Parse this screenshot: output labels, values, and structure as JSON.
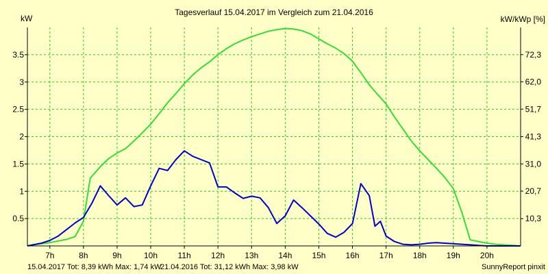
{
  "chart_data": {
    "type": "line",
    "title": "Tagesverlauf 15.04.2017 im Vergleich zum 21.04.2016",
    "ylabel": "kW",
    "y2label": "kW/kWp [%]",
    "footer_right": "SunnyReport pinxit",
    "grid": true,
    "ylim": [
      0,
      4.0
    ],
    "y2lim": [
      0,
      82.6
    ],
    "xlim": [
      6.333,
      21.0
    ],
    "x_ticks": [
      "7h",
      "8h",
      "9h",
      "10h",
      "11h",
      "12h",
      "13h",
      "14h",
      "15h",
      "16h",
      "17h",
      "18h",
      "19h",
      "20h"
    ],
    "y_ticks": [
      "0.5",
      "1",
      "1.5",
      "2",
      "2.5",
      "3",
      "3.5"
    ],
    "y2_ticks": [
      "10,3",
      "20,7",
      "31,0",
      "41,3",
      "51,7",
      "62,0",
      "72,3"
    ],
    "series": [
      {
        "name": "15.04.2017",
        "legend": "15.04.2017 Tot: 8,39 kWh Max: 1,74 kW",
        "color": "#0000cc",
        "x": [
          6.333,
          6.5,
          6.75,
          7.0,
          7.25,
          7.5,
          7.75,
          8.0,
          8.25,
          8.5,
          8.75,
          9.0,
          9.25,
          9.5,
          9.75,
          10.0,
          10.25,
          10.5,
          10.75,
          11.0,
          11.25,
          11.42,
          11.5,
          11.75,
          12.0,
          12.25,
          12.5,
          12.75,
          13.0,
          13.25,
          13.5,
          13.75,
          14.0,
          14.25,
          14.5,
          14.75,
          15.0,
          15.25,
          15.5,
          15.75,
          16.0,
          16.25,
          16.5,
          16.67,
          16.83,
          17.0,
          17.25,
          17.5,
          17.75,
          18.0,
          18.25,
          18.5,
          18.75,
          19.0,
          19.25,
          19.5,
          19.75,
          20.0,
          20.25,
          20.5,
          20.75,
          21.0
        ],
        "values": [
          0,
          0.02,
          0.05,
          0.1,
          0.18,
          0.3,
          0.42,
          0.52,
          0.78,
          1.1,
          0.92,
          0.75,
          0.88,
          0.72,
          0.75,
          1.1,
          1.42,
          1.38,
          1.58,
          1.74,
          1.64,
          1.6,
          1.58,
          1.52,
          1.08,
          1.08,
          0.97,
          0.87,
          0.91,
          0.88,
          0.7,
          0.41,
          0.55,
          0.84,
          0.7,
          0.55,
          0.4,
          0.23,
          0.16,
          0.25,
          0.41,
          1.14,
          0.92,
          0.36,
          0.45,
          0.18,
          0.08,
          0.03,
          0.02,
          0.03,
          0.05,
          0.06,
          0.05,
          0.04,
          0.03,
          0.02,
          0.01,
          0,
          0,
          0,
          0,
          0
        ]
      },
      {
        "name": "21.04.2016",
        "legend": "21.04.2016 Tot: 31,12 kWh Max: 3,98 kW",
        "color": "#33dd33",
        "x": [
          6.333,
          6.5,
          6.75,
          7.0,
          7.25,
          7.5,
          7.75,
          8.0,
          8.2,
          8.5,
          8.75,
          9.0,
          9.25,
          9.5,
          9.75,
          10.0,
          10.25,
          10.5,
          10.75,
          11.0,
          11.25,
          11.5,
          11.75,
          12.0,
          12.25,
          12.5,
          12.75,
          13.0,
          13.25,
          13.5,
          13.75,
          14.0,
          14.25,
          14.5,
          14.75,
          15.0,
          15.25,
          15.5,
          15.75,
          16.0,
          16.25,
          16.5,
          16.75,
          17.0,
          17.25,
          17.5,
          17.75,
          18.0,
          18.25,
          18.5,
          18.75,
          19.0,
          19.25,
          19.5,
          19.75,
          20.0,
          20.25,
          20.5,
          20.75,
          21.0
        ],
        "values": [
          0,
          0.02,
          0.04,
          0.06,
          0.09,
          0.12,
          0.17,
          0.45,
          1.24,
          1.45,
          1.6,
          1.7,
          1.78,
          1.92,
          2.07,
          2.23,
          2.42,
          2.62,
          2.79,
          2.97,
          3.13,
          3.26,
          3.37,
          3.5,
          3.61,
          3.7,
          3.77,
          3.83,
          3.88,
          3.93,
          3.96,
          3.98,
          3.97,
          3.94,
          3.88,
          3.79,
          3.7,
          3.62,
          3.52,
          3.38,
          3.17,
          2.95,
          2.77,
          2.6,
          2.36,
          2.14,
          1.92,
          1.74,
          1.58,
          1.42,
          1.25,
          1.05,
          0.62,
          0.11,
          0.08,
          0.05,
          0.03,
          0.02,
          0.01,
          0
        ]
      }
    ]
  }
}
